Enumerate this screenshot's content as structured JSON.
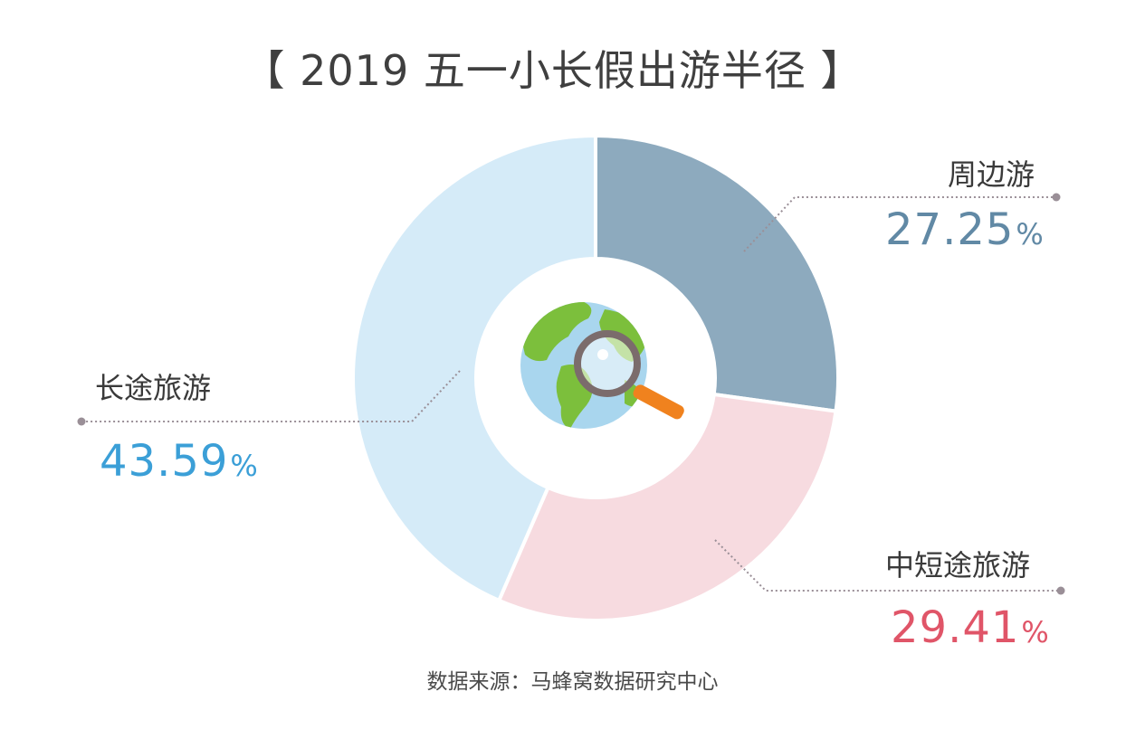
{
  "title": "【 2019 五一小长假出游半径 】",
  "source": "数据来源：马蜂窝数据研究中心",
  "icon": "globe-magnifier-icon",
  "colors": {
    "周边游": "#8daabe",
    "中短途旅游": "#f7dbe0",
    "长途旅游": "#d5ebf8",
    "周边游_text": "#6189a5",
    "中短途旅游_text": "#e05568",
    "长途旅游_text": "#3b9fd7"
  },
  "chart_data": {
    "type": "pie",
    "subtype": "donut",
    "title": "【 2019 五一小长假出游半径 】",
    "series": [
      {
        "label": "周边游",
        "value": 27.25,
        "display": "27.25",
        "unit": "%"
      },
      {
        "label": "中短途旅游",
        "value": 29.41,
        "display": "29.41",
        "unit": "%"
      },
      {
        "label": "长途旅游",
        "value": 43.59,
        "display": "43.59",
        "unit": "%"
      }
    ]
  }
}
